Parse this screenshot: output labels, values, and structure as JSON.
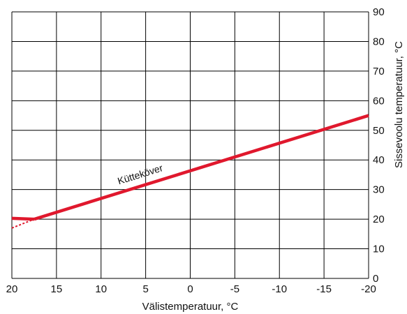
{
  "chart_data": {
    "type": "line",
    "xlabel": "Välistemperatuur, °C",
    "ylabel": "Sissevoolu temperatuur, °C",
    "xlim": [
      20,
      -20
    ],
    "ylim": [
      0,
      90
    ],
    "x_ticks": [
      20,
      15,
      10,
      5,
      0,
      -5,
      -10,
      -15,
      -20
    ],
    "y_ticks": [
      0,
      10,
      20,
      30,
      40,
      50,
      60,
      70,
      80,
      90
    ],
    "grid": true,
    "annotation": "Kütteköver",
    "colors": {
      "curve": "#e0182d",
      "grid": "#000000"
    },
    "series": [
      {
        "style": "solid",
        "x": [
          20,
          17.5
        ],
        "y": [
          20.3,
          20
        ]
      },
      {
        "style": "solid",
        "x": [
          17.5,
          -20
        ],
        "y": [
          20,
          55
        ]
      },
      {
        "style": "dashed",
        "x": [
          20,
          17.5
        ],
        "y": [
          17,
          20
        ]
      }
    ]
  }
}
